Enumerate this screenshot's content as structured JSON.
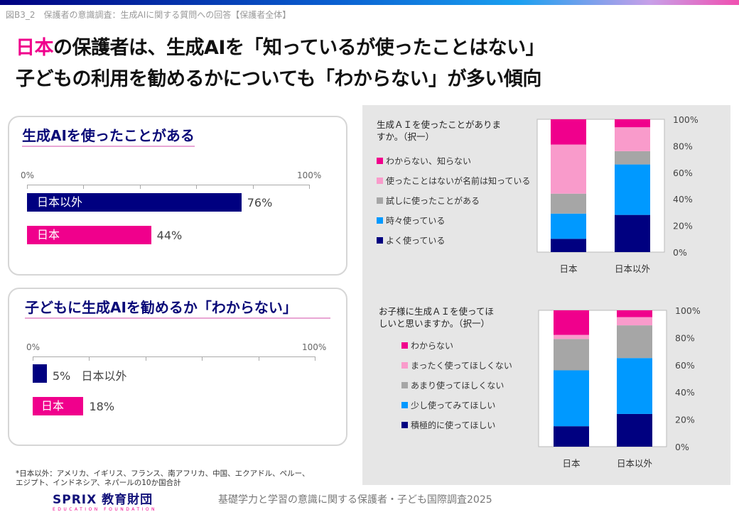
{
  "figure_label": "図B3_2　保護者の意識調査：生成AIに関する質問への回答【保護者全体】",
  "headline": {
    "line1_highlight": "日本",
    "line1_rest": "の保護者は、生成AIを「知っているが使ったことはない」",
    "line2": "子どもの利用を勧めるかについても「わからない」が多い傾向"
  },
  "colors": {
    "japan": "#f0008c",
    "other": "#000080",
    "c1": "#f0008c",
    "c2": "#f99bcb",
    "c3": "#a6a6a6",
    "c4": "#0099ff",
    "c5": "#000080"
  },
  "chart_data": [
    {
      "type": "bar",
      "orientation": "horizontal",
      "title": "生成AIを使ったことがある",
      "xlim": [
        0,
        100
      ],
      "tick_labels": [
        "0%",
        "100%"
      ],
      "categories": [
        "日本以外",
        "日本"
      ],
      "values": [
        76,
        44
      ],
      "value_labels": [
        "76%",
        "44%"
      ]
    },
    {
      "type": "bar",
      "orientation": "horizontal",
      "title": "子どもに生成AIを勧めるか「わからない」",
      "xlim": [
        0,
        100
      ],
      "tick_labels": [
        "0%",
        "100%"
      ],
      "categories": [
        "日本以外",
        "日本"
      ],
      "values": [
        5,
        18
      ],
      "value_labels": [
        "5%",
        "18%"
      ]
    },
    {
      "type": "bar",
      "stacked": true,
      "title": "生成ＡＩを使ったことがありますか。（択一）",
      "ylim": [
        0,
        100
      ],
      "y_ticks": [
        "0%",
        "20%",
        "40%",
        "60%",
        "80%",
        "100%"
      ],
      "categories": [
        "日本",
        "日本以外"
      ],
      "series": [
        {
          "name": "よく使っている",
          "values": [
            10,
            28
          ]
        },
        {
          "name": "時々使っている",
          "values": [
            19,
            38
          ]
        },
        {
          "name": "試しに使ったことがある",
          "values": [
            15,
            10
          ]
        },
        {
          "name": "使ったことはないが名前は知っている",
          "values": [
            37,
            18
          ]
        },
        {
          "name": "わからない、知らない",
          "values": [
            19,
            6
          ]
        }
      ]
    },
    {
      "type": "bar",
      "stacked": true,
      "title": "お子様に生成ＡＩを使ってほしいと思いますか。（択一）",
      "ylim": [
        0,
        100
      ],
      "y_ticks": [
        "0%",
        "20%",
        "40%",
        "60%",
        "80%",
        "100%"
      ],
      "categories": [
        "日本",
        "日本以外"
      ],
      "series": [
        {
          "name": "積極的に使ってほしい",
          "values": [
            15,
            24
          ]
        },
        {
          "name": "少し使ってみてほしい",
          "values": [
            41,
            41
          ]
        },
        {
          "name": "あまり使ってほしくない",
          "values": [
            23,
            24
          ]
        },
        {
          "name": "まったく使ってほしくない",
          "values": [
            3,
            6
          ]
        },
        {
          "name": "わからない",
          "values": [
            18,
            5
          ]
        }
      ]
    }
  ],
  "chart_titles": {
    "c3_line1": "生成ＡＩを使ったことがありま",
    "c3_line2": "すか。（択一）",
    "c4_line1": "お子様に生成ＡＩを使ってほ",
    "c4_line2": "しいと思いますか。（択一）"
  },
  "footnote": {
    "line1": "*日本以外：アメリカ、イギリス、フランス、南アフリカ、中国、エクアドル、ペルー、",
    "line2": "エジプト、インドネシア、ネパールの10か国合計"
  },
  "logo": {
    "main": "SPRIX 教育財団",
    "sub": "EDUCATION FOUNDATION"
  },
  "source": "基礎学力と学習の意識に関する保護者・子ども国際調査2025"
}
